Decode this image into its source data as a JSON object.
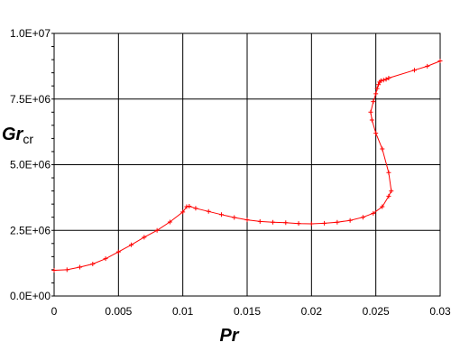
{
  "chart_data": {
    "type": "line",
    "title": "",
    "xlabel": "Pr",
    "ylabel_main": "Gr",
    "ylabel_sub": "cr",
    "xlim": [
      0,
      0.03
    ],
    "ylim": [
      0,
      10000000
    ],
    "x_ticks": [
      0,
      0.005,
      0.01,
      0.015,
      0.02,
      0.025,
      0.03
    ],
    "x_tick_labels": [
      "0",
      "0.005",
      "0.01",
      "0.015",
      "0.02",
      "0.025",
      "0.03"
    ],
    "y_ticks": [
      0,
      2500000,
      5000000,
      7500000,
      10000000
    ],
    "y_tick_labels": [
      "0.0E+00",
      "2.5E+06",
      "5.0E+06",
      "7.5E+06",
      "1.0E+07"
    ],
    "grid": true,
    "legend": "none",
    "series": [
      {
        "color": "#ff0000",
        "marker": "plus",
        "x": [
          0,
          0.001,
          0.002,
          0.003,
          0.004,
          0.005,
          0.006,
          0.007,
          0.008,
          0.009,
          0.01,
          0.0103,
          0.0105,
          0.011,
          0.012,
          0.013,
          0.014,
          0.015,
          0.016,
          0.017,
          0.018,
          0.019,
          0.02,
          0.021,
          0.022,
          0.023,
          0.024,
          0.0248,
          0.0255,
          0.026,
          0.0262,
          0.026,
          0.0255,
          0.025,
          0.0247,
          0.0246,
          0.0248,
          0.025,
          0.0251,
          0.0252,
          0.0253,
          0.0254,
          0.0256,
          0.0258,
          0.026,
          0.028,
          0.029,
          0.03
        ],
        "y": [
          980000,
          1000000,
          1100000,
          1220000,
          1420000,
          1680000,
          1950000,
          2240000,
          2500000,
          2820000,
          3200000,
          3400000,
          3420000,
          3340000,
          3220000,
          3100000,
          2990000,
          2900000,
          2840000,
          2810000,
          2790000,
          2760000,
          2750000,
          2770000,
          2810000,
          2880000,
          3000000,
          3150000,
          3400000,
          3800000,
          4000000,
          4700000,
          5600000,
          6200000,
          6700000,
          7000000,
          7400000,
          7700000,
          7900000,
          8050000,
          8150000,
          8200000,
          8220000,
          8250000,
          8300000,
          8600000,
          8750000,
          8950000
        ]
      }
    ]
  }
}
